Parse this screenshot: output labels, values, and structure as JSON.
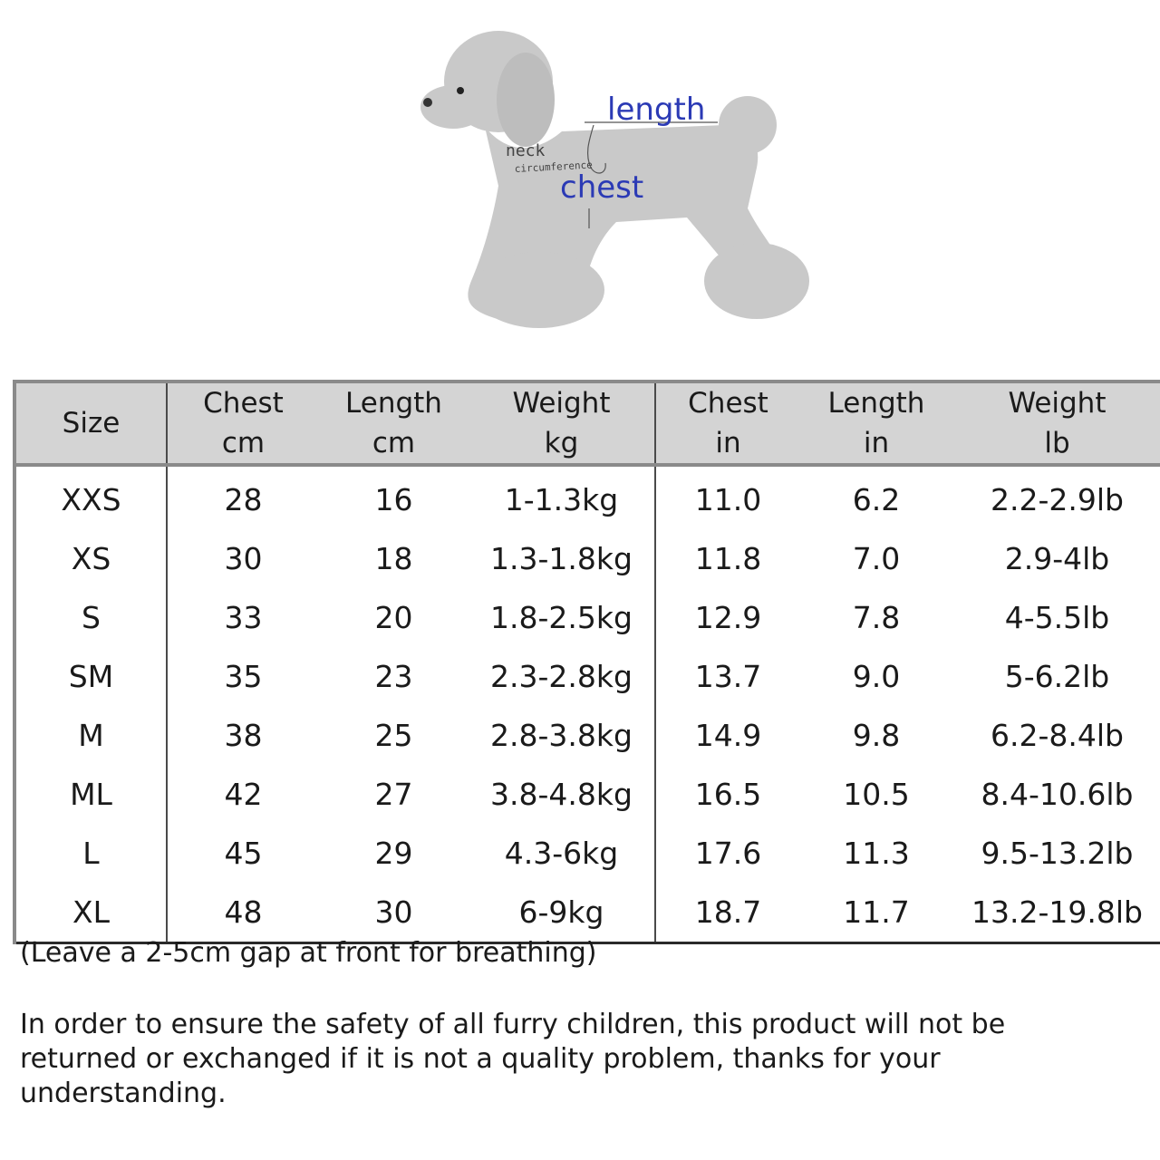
{
  "diagram": {
    "labels": {
      "length": "length",
      "neck": "neck",
      "circumference": "circumference",
      "chest": "chest"
    },
    "label_color": "#2b3ab5",
    "body_color": "#c8c8c8"
  },
  "table": {
    "headers": [
      {
        "name": "Size",
        "unit": ""
      },
      {
        "name": "Chest",
        "unit": "cm"
      },
      {
        "name": "Length",
        "unit": "cm"
      },
      {
        "name": "Weight",
        "unit": "kg"
      },
      {
        "name": "Chest",
        "unit": "in"
      },
      {
        "name": "Length",
        "unit": "in"
      },
      {
        "name": "Weight",
        "unit": "lb"
      }
    ],
    "rows": [
      [
        "XXS",
        "28",
        "16",
        "1-1.3kg",
        "11.0",
        "6.2",
        "2.2-2.9lb"
      ],
      [
        "XS",
        "30",
        "18",
        "1.3-1.8kg",
        "11.8",
        "7.0",
        "2.9-4lb"
      ],
      [
        "S",
        "33",
        "20",
        "1.8-2.5kg",
        "12.9",
        "7.8",
        "4-5.5lb"
      ],
      [
        "SM",
        "35",
        "23",
        "2.3-2.8kg",
        "13.7",
        "9.0",
        "5-6.2lb"
      ],
      [
        "M",
        "38",
        "25",
        "2.8-3.8kg",
        "14.9",
        "9.8",
        "6.2-8.4lb"
      ],
      [
        "ML",
        "42",
        "27",
        "3.8-4.8kg",
        "16.5",
        "10.5",
        "8.4-10.6lb"
      ],
      [
        "L",
        "45",
        "29",
        "4.3-6kg",
        "17.6",
        "11.3",
        "9.5-13.2lb"
      ],
      [
        "XL",
        "48",
        "30",
        "6-9kg",
        "18.7",
        "11.7",
        "13.2-19.8lb"
      ]
    ]
  },
  "notes": {
    "gap": "(Leave a 2-5cm gap at front for breathing)",
    "policy": "In order to ensure the safety of all furry children, this product will not be returned or exchanged if it is not a quality problem, thanks for your understanding."
  }
}
